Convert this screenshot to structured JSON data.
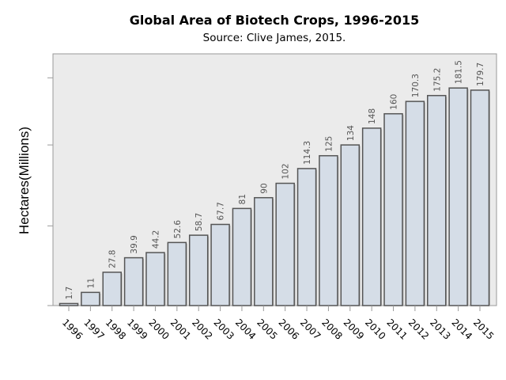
{
  "chart_data": {
    "type": "bar",
    "title": "Global Area of Biotech Crops, 1996-2015",
    "subtitle": "Source: Clive James, 2015.",
    "xlabel": "",
    "ylabel": "Hectares(Millions)",
    "categories": [
      "1996",
      "1997",
      "1998",
      "1999",
      "2000",
      "2001",
      "2002",
      "2003",
      "2004",
      "2005",
      "2006",
      "2007",
      "2008",
      "2009",
      "2010",
      "2011",
      "2012",
      "2013",
      "2014",
      "2015"
    ],
    "values": [
      1.7,
      11,
      27.8,
      39.9,
      44.2,
      52.6,
      58.7,
      67.7,
      81,
      90,
      102,
      114.3,
      125,
      134,
      148,
      160,
      170.3,
      175.2,
      181.5,
      179.7
    ],
    "data_labels": [
      "1.7",
      "11",
      "27.8",
      "39.9",
      "44.2",
      "52.6",
      "58.7",
      "67.7",
      "81",
      "90",
      "102",
      "114.3",
      "125",
      "134",
      "148",
      "160",
      "170.3",
      "175.2",
      "181.5",
      "179.7"
    ],
    "ylim": [
      0,
      210
    ],
    "yticks": [
      0,
      66.5,
      134,
      190
    ],
    "ytick_labels_shown": false,
    "grid": false,
    "colors": {
      "bar_fill": "#d5dde7",
      "bar_stroke": "#555555",
      "plot_bg": "#ebebeb",
      "plot_border": "#9a9a9a",
      "label": "#555555"
    }
  }
}
